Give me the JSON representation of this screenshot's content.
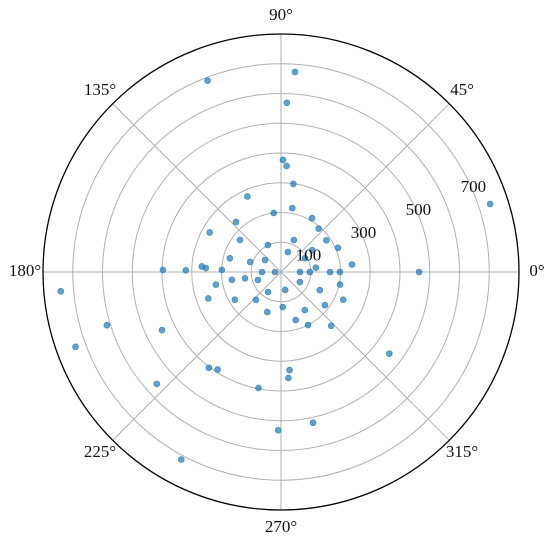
{
  "chart_data": {
    "type": "scatter",
    "polar": true,
    "color": "#1f77b4",
    "grid": true,
    "rlim": [
      0,
      800
    ],
    "rticks": [
      100,
      300,
      500,
      700
    ],
    "minor_rticks": [
      200,
      400,
      600
    ],
    "rlabel_angle": 22.5,
    "thetaticks": [
      {
        "value": 0,
        "label": "0°"
      },
      {
        "value": 45,
        "label": "45°"
      },
      {
        "value": 90,
        "label": "90°"
      },
      {
        "value": 135,
        "label": "135°"
      },
      {
        "value": 180,
        "label": "180°"
      },
      {
        "value": 225,
        "label": "225°"
      },
      {
        "value": 270,
        "label": "270°"
      },
      {
        "value": 315,
        "label": "315°"
      }
    ],
    "theta": [
      86,
      111,
      88,
      18,
      185,
      200,
      242,
      269,
      282,
      323,
      0,
      197,
      222,
      206,
      233,
      237,
      259,
      275,
      274,
      89,
      87,
      82,
      114,
      97,
      80,
      60,
      49,
      132,
      151,
      179,
      179,
      177,
      200,
      189,
      211,
      251,
      273,
      287,
      297,
      313,
      323,
      336,
      6,
      23,
      35,
      30,
      143,
      162,
      142,
      71,
      7,
      0,
      199,
      190,
      332,
      283,
      237,
      335,
      180,
      180,
      0,
      0,
      0,
      178,
      176,
      68,
      116,
      165,
      35,
      348,
      228,
      302,
      191
    ],
    "r": [
      674,
      689,
      569,
      739,
      743,
      735,
      714,
      532,
      518,
      456,
      464,
      612,
      562,
      445,
      403,
      391,
      397,
      331,
      357,
      377,
      357,
      299,
      278,
      200,
      218,
      209,
      193,
      226,
      274,
      397,
      320,
      253,
      260,
      167,
      181,
      142,
      118,
      169,
      200,
      247,
      185,
      229,
      240,
      208,
      186,
      93,
      67,
      109,
      175,
      71,
      118,
      165,
      82,
      123,
      72,
      62,
      80,
      144,
      20,
      64,
      64,
      97,
      198,
      199,
      267,
      116,
      101,
      178,
      128,
      203,
      126,
      151,
      223
    ]
  }
}
